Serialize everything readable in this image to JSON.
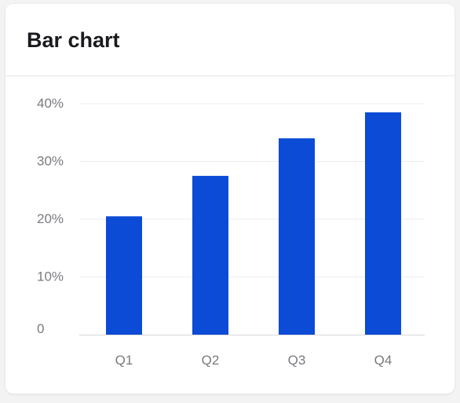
{
  "card": {
    "title": "Bar chart"
  },
  "colors": {
    "bar": "#0b4bd6",
    "grid": "#ededef",
    "axis": "#d9d9dc",
    "tick_text": "#7a7a80"
  },
  "chart_data": {
    "type": "bar",
    "categories": [
      "Q1",
      "Q2",
      "Q3",
      "Q4"
    ],
    "values": [
      20.5,
      27.5,
      34,
      38.5
    ],
    "ylim": [
      0,
      40
    ],
    "y_ticks": [
      0,
      10,
      20,
      30,
      40
    ],
    "y_tick_labels": [
      "0",
      "10%",
      "20%",
      "30%",
      "40%"
    ],
    "grid": true,
    "legend": "none"
  }
}
